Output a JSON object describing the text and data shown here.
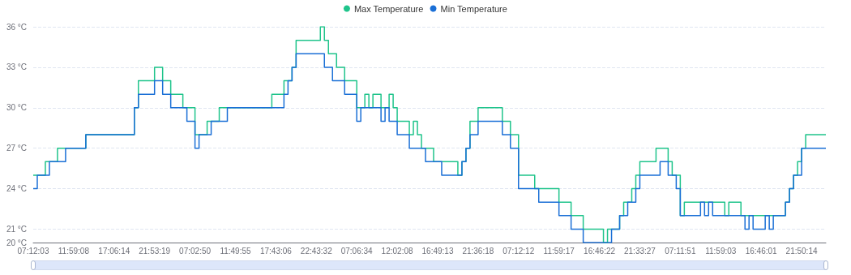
{
  "chart_data": {
    "type": "step",
    "categories": [
      "07:12:03",
      null,
      null,
      null,
      null,
      null,
      null,
      null,
      null,
      null,
      "11:59:08",
      null,
      null,
      null,
      null,
      null,
      null,
      null,
      null,
      null,
      "17:06:14",
      null,
      null,
      null,
      null,
      null,
      null,
      null,
      null,
      null,
      "21:53:19",
      null,
      null,
      null,
      null,
      null,
      null,
      null,
      null,
      null,
      "07:02:50",
      null,
      null,
      null,
      null,
      null,
      null,
      null,
      null,
      null,
      "11:49:55",
      null,
      null,
      null,
      null,
      null,
      null,
      null,
      null,
      null,
      "17:43:06",
      null,
      null,
      null,
      null,
      null,
      null,
      null,
      null,
      null,
      "22:43:32",
      null,
      null,
      null,
      null,
      null,
      null,
      null,
      null,
      null,
      "07:06:34",
      null,
      null,
      null,
      null,
      null,
      null,
      null,
      null,
      null,
      "12:02:08",
      null,
      null,
      null,
      null,
      null,
      null,
      null,
      null,
      null,
      "16:49:13",
      null,
      null,
      null,
      null,
      null,
      null,
      null,
      null,
      null,
      "21:36:18",
      null,
      null,
      null,
      null,
      null,
      null,
      null,
      null,
      null,
      "07:12:12",
      null,
      null,
      null,
      null,
      null,
      null,
      null,
      null,
      null,
      "11:59:17",
      null,
      null,
      null,
      null,
      null,
      null,
      null,
      null,
      null,
      "16:46:22",
      null,
      null,
      null,
      null,
      null,
      null,
      null,
      null,
      null,
      "21:33:27",
      null,
      null,
      null,
      null,
      null,
      null,
      null,
      null,
      null,
      "07:11:51",
      null,
      null,
      null,
      null,
      null,
      null,
      null,
      null,
      null,
      "11:59:03",
      null,
      null,
      null,
      null,
      null,
      null,
      null,
      null,
      null,
      "16:46:01",
      null,
      null,
      null,
      null,
      null,
      null,
      null,
      null,
      null,
      "21:50:14",
      null,
      null,
      null,
      null,
      null,
      null
    ],
    "series": [
      {
        "name": "Max Temperature",
        "color": "#1fc48b",
        "values": [
          25,
          25,
          25,
          26,
          26,
          26,
          27,
          27,
          27,
          27,
          27,
          27,
          27,
          28,
          28,
          28,
          28,
          28,
          28,
          28,
          28,
          28,
          28,
          28,
          28,
          30,
          32,
          32,
          32,
          32,
          33,
          33,
          32,
          32,
          31,
          31,
          31,
          30,
          30,
          30,
          28,
          28,
          28,
          29,
          29,
          29,
          30,
          30,
          30,
          30,
          30,
          30,
          30,
          30,
          30,
          30,
          30,
          30,
          30,
          31,
          31,
          31,
          32,
          32,
          33,
          35,
          35,
          35,
          35,
          35,
          35,
          36,
          35,
          34,
          34,
          33,
          33,
          32,
          32,
          32,
          30,
          30,
          31,
          30,
          31,
          31,
          30,
          30,
          31,
          30,
          29,
          29,
          29,
          28,
          29,
          28,
          27,
          27,
          27,
          26,
          26,
          26,
          26,
          26,
          26,
          25,
          26,
          27,
          29,
          29,
          30,
          30,
          30,
          30,
          30,
          30,
          29,
          29,
          28,
          28,
          25,
          25,
          25,
          25,
          24,
          24,
          24,
          24,
          24,
          24,
          23,
          23,
          23,
          22,
          22,
          22,
          21,
          21,
          21,
          21,
          21,
          20,
          21,
          21,
          21,
          22,
          23,
          23,
          24,
          25,
          26,
          26,
          26,
          26,
          27,
          27,
          27,
          26,
          25,
          25,
          22,
          23,
          23,
          23,
          23,
          23,
          23,
          23,
          23,
          23,
          23,
          22,
          23,
          23,
          23,
          22,
          22,
          22,
          22,
          22,
          22,
          22,
          22,
          22,
          22,
          22,
          23,
          24,
          25,
          26,
          27,
          28,
          28,
          28,
          28,
          28,
          28
        ]
      },
      {
        "name": "Min Temperature",
        "color": "#1a6fd6",
        "values": [
          24,
          25,
          25,
          25,
          26,
          26,
          26,
          26,
          27,
          27,
          27,
          27,
          27,
          28,
          28,
          28,
          28,
          28,
          28,
          28,
          28,
          28,
          28,
          28,
          28,
          30,
          31,
          31,
          31,
          31,
          32,
          32,
          31,
          31,
          30,
          30,
          30,
          30,
          29,
          29,
          27,
          28,
          28,
          28,
          29,
          29,
          29,
          29,
          30,
          30,
          30,
          30,
          30,
          30,
          30,
          30,
          30,
          30,
          30,
          30,
          30,
          30,
          31,
          32,
          33,
          34,
          34,
          34,
          34,
          34,
          34,
          34,
          33,
          33,
          32,
          32,
          32,
          31,
          31,
          31,
          29,
          30,
          30,
          30,
          30,
          30,
          29,
          30,
          29,
          29,
          28,
          28,
          28,
          27,
          27,
          27,
          27,
          26,
          26,
          26,
          26,
          25,
          25,
          25,
          25,
          25,
          26,
          27,
          28,
          28,
          29,
          29,
          29,
          29,
          29,
          29,
          28,
          28,
          27,
          27,
          24,
          24,
          24,
          24,
          24,
          23,
          23,
          23,
          23,
          23,
          22,
          22,
          22,
          21,
          21,
          21,
          20,
          20,
          20,
          20,
          20,
          20,
          20,
          21,
          21,
          22,
          22,
          23,
          23,
          24,
          25,
          25,
          25,
          25,
          25,
          26,
          26,
          25,
          25,
          24,
          22,
          22,
          22,
          22,
          22,
          23,
          22,
          23,
          22,
          22,
          22,
          22,
          22,
          22,
          22,
          22,
          21,
          22,
          21,
          21,
          21,
          22,
          21,
          22,
          22,
          22,
          23,
          24,
          25,
          25,
          27,
          27,
          27,
          27,
          27,
          27,
          27
        ]
      }
    ],
    "ylim": [
      20,
      36
    ],
    "yticks": [
      {
        "value": 20,
        "label": "20 °C"
      },
      {
        "value": 21,
        "label": "21 °C"
      },
      {
        "value": 24,
        "label": "24 °C"
      },
      {
        "value": 27,
        "label": "27 °C"
      },
      {
        "value": 30,
        "label": "30 °C"
      },
      {
        "value": 33,
        "label": "33 °C"
      },
      {
        "value": 36,
        "label": "36 °C"
      }
    ],
    "grid": "y",
    "legend": "top",
    "marker": "none"
  }
}
